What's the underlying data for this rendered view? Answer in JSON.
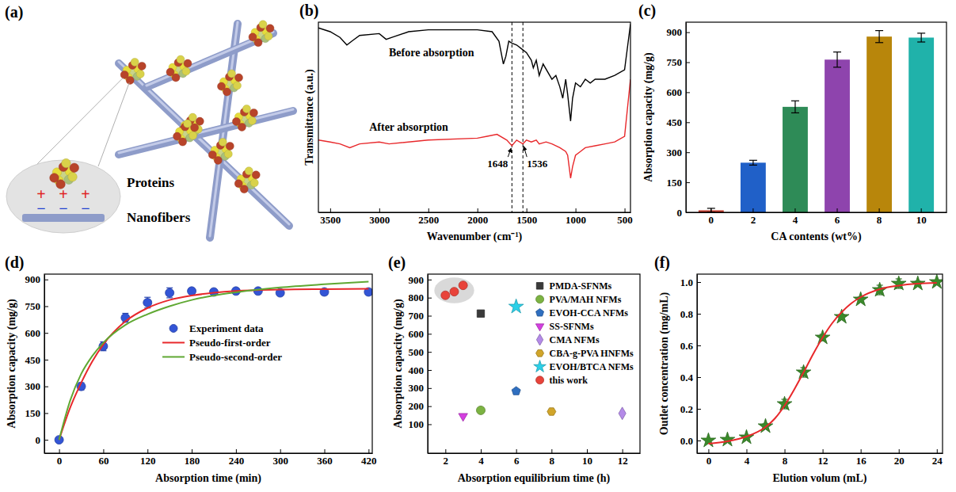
{
  "chart_data": [
    {
      "type": "diagram",
      "title": "(a)",
      "labels": [
        "Proteins",
        "Nanofibers"
      ],
      "signs": [
        "+",
        "−"
      ]
    },
    {
      "type": "line",
      "title": "(b)",
      "x_label": "Wavenumber (cm⁻¹)",
      "y_label": "Transmittance (a.u.)",
      "xlim": [
        3620,
        440
      ],
      "xticks": [
        3500,
        3000,
        2500,
        2000,
        1500,
        1000,
        500
      ],
      "ylim": [
        0,
        100
      ],
      "tick_labels": "x",
      "series": [
        {
          "name": "Before absorption",
          "color": "#000000",
          "x": [
            3620,
            3500,
            3400,
            3330,
            3280,
            3200,
            3000,
            2930,
            2870,
            2700,
            2500,
            2200,
            2000,
            1850,
            1780,
            1735,
            1710,
            1680,
            1650,
            1600,
            1550,
            1500,
            1450,
            1430,
            1400,
            1370,
            1330,
            1240,
            1200,
            1160,
            1130,
            1100,
            1080,
            1050,
            1030,
            1000,
            950,
            900,
            850,
            800,
            700,
            600,
            500,
            450,
            440
          ],
          "values": [
            97,
            95,
            92,
            88,
            90,
            93,
            94,
            91,
            92,
            95,
            96,
            96,
            96,
            95,
            90,
            78,
            82,
            90,
            89,
            88,
            86,
            84,
            80,
            76,
            80,
            72,
            78,
            70,
            72,
            66,
            60,
            70,
            62,
            48,
            60,
            68,
            66,
            70,
            68,
            70,
            70,
            72,
            75,
            95,
            99
          ]
        },
        {
          "name": "After absorption",
          "color": "#e8282b",
          "x": [
            3620,
            3500,
            3400,
            3300,
            3200,
            3000,
            2900,
            2500,
            2000,
            1900,
            1800,
            1700,
            1648,
            1600,
            1536,
            1500,
            1450,
            1400,
            1370,
            1300,
            1240,
            1160,
            1100,
            1080,
            1050,
            1030,
            1000,
            950,
            900,
            800,
            700,
            600,
            500,
            450,
            440
          ],
          "values": [
            38,
            37,
            36,
            34,
            36,
            37,
            36,
            38,
            39,
            40,
            41,
            38,
            35,
            38,
            36,
            38,
            37,
            38,
            36,
            37,
            36,
            34,
            32,
            30,
            18,
            24,
            30,
            32,
            34,
            35,
            36,
            37,
            40,
            65,
            70
          ]
        }
      ],
      "annotations": [
        {
          "text": "1648",
          "x": 1648
        },
        {
          "text": "1536",
          "x": 1536
        }
      ]
    },
    {
      "type": "bar",
      "title": "(c)",
      "x_label": "CA contents (wt%)",
      "y_label": "Absorption capacity (mg/g)",
      "categories": [
        "0",
        "2",
        "4",
        "6",
        "8",
        "10"
      ],
      "values": [
        10,
        248,
        527,
        763,
        878,
        873
      ],
      "errors": [
        10,
        12,
        30,
        38,
        30,
        22
      ],
      "colors": [
        "#c0392b",
        "#2060c8",
        "#2e8b57",
        "#8e44ad",
        "#b8860b",
        "#20b2aa"
      ],
      "ylim": [
        0,
        950
      ],
      "yticks": [
        0,
        150,
        300,
        450,
        600,
        750,
        900
      ]
    },
    {
      "type": "scatter",
      "title": "(d)",
      "x_label": "Absorption time (min)",
      "y_label": "Absorption capacity (mg/g)",
      "xlim": [
        -20,
        425
      ],
      "xticks": [
        0,
        60,
        120,
        180,
        240,
        300,
        360,
        420
      ],
      "ylim": [
        -75,
        930
      ],
      "yticks": [
        0,
        150,
        300,
        450,
        600,
        750,
        900
      ],
      "legend": "center",
      "series": [
        {
          "name": "Experiment data",
          "type": "scatter",
          "marker": "circle",
          "color": "#3355d6",
          "x": [
            0,
            30,
            60,
            90,
            120,
            150,
            180,
            210,
            240,
            270,
            300,
            360,
            420
          ],
          "values": [
            0,
            300,
            525,
            685,
            770,
            825,
            835,
            830,
            835,
            835,
            825,
            830,
            830
          ],
          "errors": [
            0,
            20,
            25,
            25,
            30,
            28,
            15,
            10,
            15,
            10,
            12,
            15,
            12
          ]
        },
        {
          "name": "Pseudo-first-order",
          "type": "line",
          "color": "#e8282b",
          "x": [
            0,
            15,
            30,
            45,
            60,
            90,
            120,
            150,
            180,
            210,
            240,
            300,
            360,
            420
          ],
          "values": [
            0,
            180,
            320,
            440,
            535,
            665,
            740,
            785,
            810,
            825,
            835,
            843,
            846,
            848
          ]
        },
        {
          "name": "Pseudo-second-order",
          "type": "line",
          "color": "#5fa832",
          "x": [
            0,
            15,
            30,
            45,
            60,
            90,
            120,
            150,
            180,
            210,
            240,
            300,
            360,
            420
          ],
          "values": [
            0,
            220,
            370,
            470,
            545,
            645,
            705,
            750,
            785,
            810,
            828,
            855,
            873,
            888
          ]
        }
      ]
    },
    {
      "type": "scatter",
      "title": "(e)",
      "x_label": "Absorption equilibrium time (h)",
      "y_label": "Absorption capacity (mg/g)",
      "xlim": [
        1,
        13
      ],
      "xticks": [
        2,
        4,
        6,
        8,
        10,
        12
      ],
      "ylim": [
        -60,
        930
      ],
      "yticks": [
        100,
        200,
        300,
        400,
        500,
        600,
        700,
        800,
        900
      ],
      "legend": "upper right",
      "series": [
        {
          "name": "PMDA-SFNMs",
          "type": "scatter",
          "marker": "square",
          "color": "#3a3a3a",
          "x": [
            4
          ],
          "values": [
            712
          ]
        },
        {
          "name": "PVA/MAH NFMs",
          "type": "scatter",
          "marker": "circle",
          "color": "#7cb342",
          "x": [
            4
          ],
          "values": [
            177
          ]
        },
        {
          "name": "EVOH-CCA NFMs",
          "type": "scatter",
          "marker": "pentagon",
          "color": "#2f6fc0",
          "x": [
            6
          ],
          "values": [
            283
          ]
        },
        {
          "name": "SS-SFNMs",
          "type": "scatter",
          "marker": "triangle-down",
          "color": "#d43fe0",
          "x": [
            3
          ],
          "values": [
            145
          ]
        },
        {
          "name": "CMA NFMs",
          "type": "scatter",
          "marker": "diamond",
          "color": "#b48ae8",
          "x": [
            12
          ],
          "values": [
            160
          ]
        },
        {
          "name": "CBA-g-PVA HNFMs",
          "type": "scatter",
          "marker": "hexagon",
          "color": "#d1a52a",
          "x": [
            8
          ],
          "values": [
            170
          ]
        },
        {
          "name": "EVOH/BTCA NFMs",
          "type": "scatter",
          "marker": "star",
          "color": "#2bd0e8",
          "x": [
            6
          ],
          "values": [
            750
          ]
        },
        {
          "name": "this work",
          "type": "scatter",
          "marker": "circle",
          "color": "#e8433a",
          "x": [
            2,
            2.5,
            3
          ],
          "values": [
            813,
            833,
            868
          ]
        }
      ]
    },
    {
      "type": "scatter",
      "title": "(f)",
      "x_label": "Elution volum (mL)",
      "y_label": "Outlet concentration (mg/mL)",
      "xlim": [
        -1.2,
        24.6
      ],
      "xticks": [
        0,
        4,
        8,
        12,
        16,
        20,
        24
      ],
      "ylim": [
        -0.08,
        1.05
      ],
      "yticks": [
        {
          "value": 0,
          "label": "0.0"
        },
        0.2,
        0.4,
        0.6,
        0.8,
        {
          "value": 1,
          "label": "1.0"
        }
      ],
      "series": [
        {
          "type": "scatter",
          "marker": "star",
          "color": "#3a8a2a",
          "x": [
            0,
            2,
            4,
            6,
            8,
            10,
            12,
            14,
            16,
            18,
            20,
            22,
            24
          ],
          "values": [
            0,
            0.005,
            0.02,
            0.09,
            0.23,
            0.43,
            0.65,
            0.78,
            0.89,
            0.95,
            0.99,
            0.99,
            1.0
          ],
          "errors": [
            0.005,
            0.005,
            0.01,
            0.015,
            0.03,
            0.03,
            0.02,
            0.015,
            0.015,
            0.03,
            0.03,
            0.015,
            0.01
          ]
        },
        {
          "type": "line",
          "color": "#e8282b",
          "x": [
            0,
            2,
            4,
            6,
            7,
            8,
            9,
            10,
            11,
            12,
            13,
            14,
            15,
            16,
            18,
            20,
            22,
            24
          ],
          "values": [
            -0.02,
            -0.005,
            0.025,
            0.085,
            0.14,
            0.22,
            0.32,
            0.43,
            0.545,
            0.65,
            0.74,
            0.81,
            0.865,
            0.905,
            0.955,
            0.978,
            0.99,
            0.995
          ]
        }
      ]
    }
  ]
}
